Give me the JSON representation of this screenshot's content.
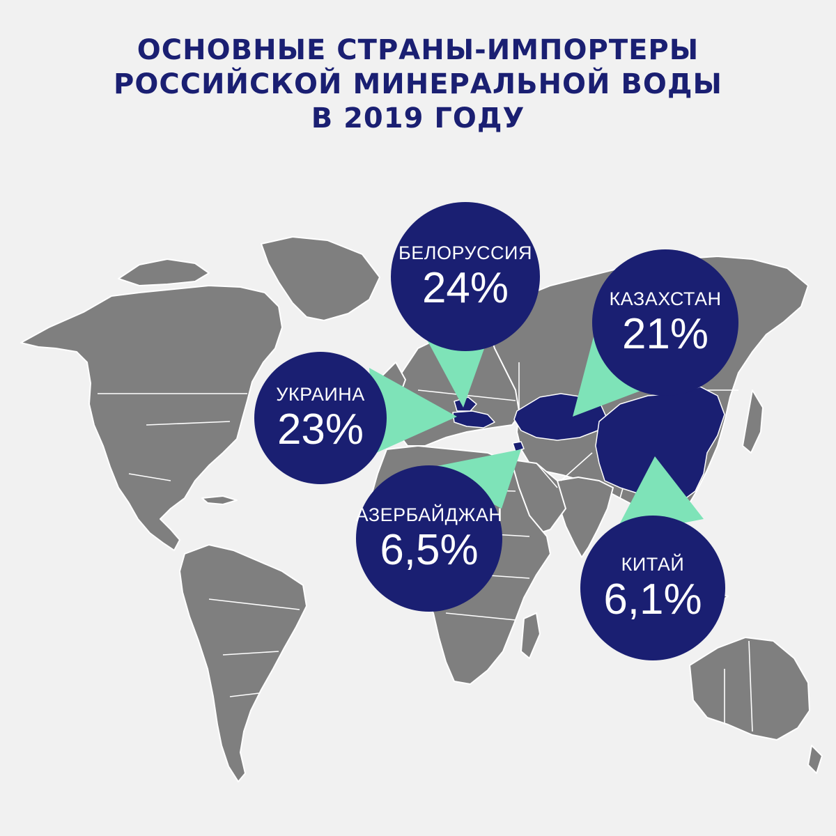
{
  "title": {
    "line1": "ОСНОВНЫЕ СТРАНЫ-ИМПОРТЕРЫ",
    "line2": "РОССИЙСКОЙ МИНЕРАЛЬНОЙ ВОДЫ",
    "line3": "В 2019 ГОДУ"
  },
  "colors": {
    "background": "#f1f1f1",
    "land": "#7f7f7f",
    "borders": "#ffffff",
    "highlight": "#1a1f72",
    "pointer": "#7ee3b8",
    "title": "#1a1f72"
  },
  "countries": [
    {
      "id": "belarus",
      "name": "БЕЛОРУССИЯ",
      "share": "24%"
    },
    {
      "id": "ukraine",
      "name": "УКРАИНА",
      "share": "23%"
    },
    {
      "id": "kazakhstan",
      "name": "КАЗАХСТАН",
      "share": "21%"
    },
    {
      "id": "azerbaijan",
      "name": "АЗЕРБАЙДЖАН",
      "share": "6,5%"
    },
    {
      "id": "china",
      "name": "КИТАЙ",
      "share": "6,1%"
    }
  ]
}
